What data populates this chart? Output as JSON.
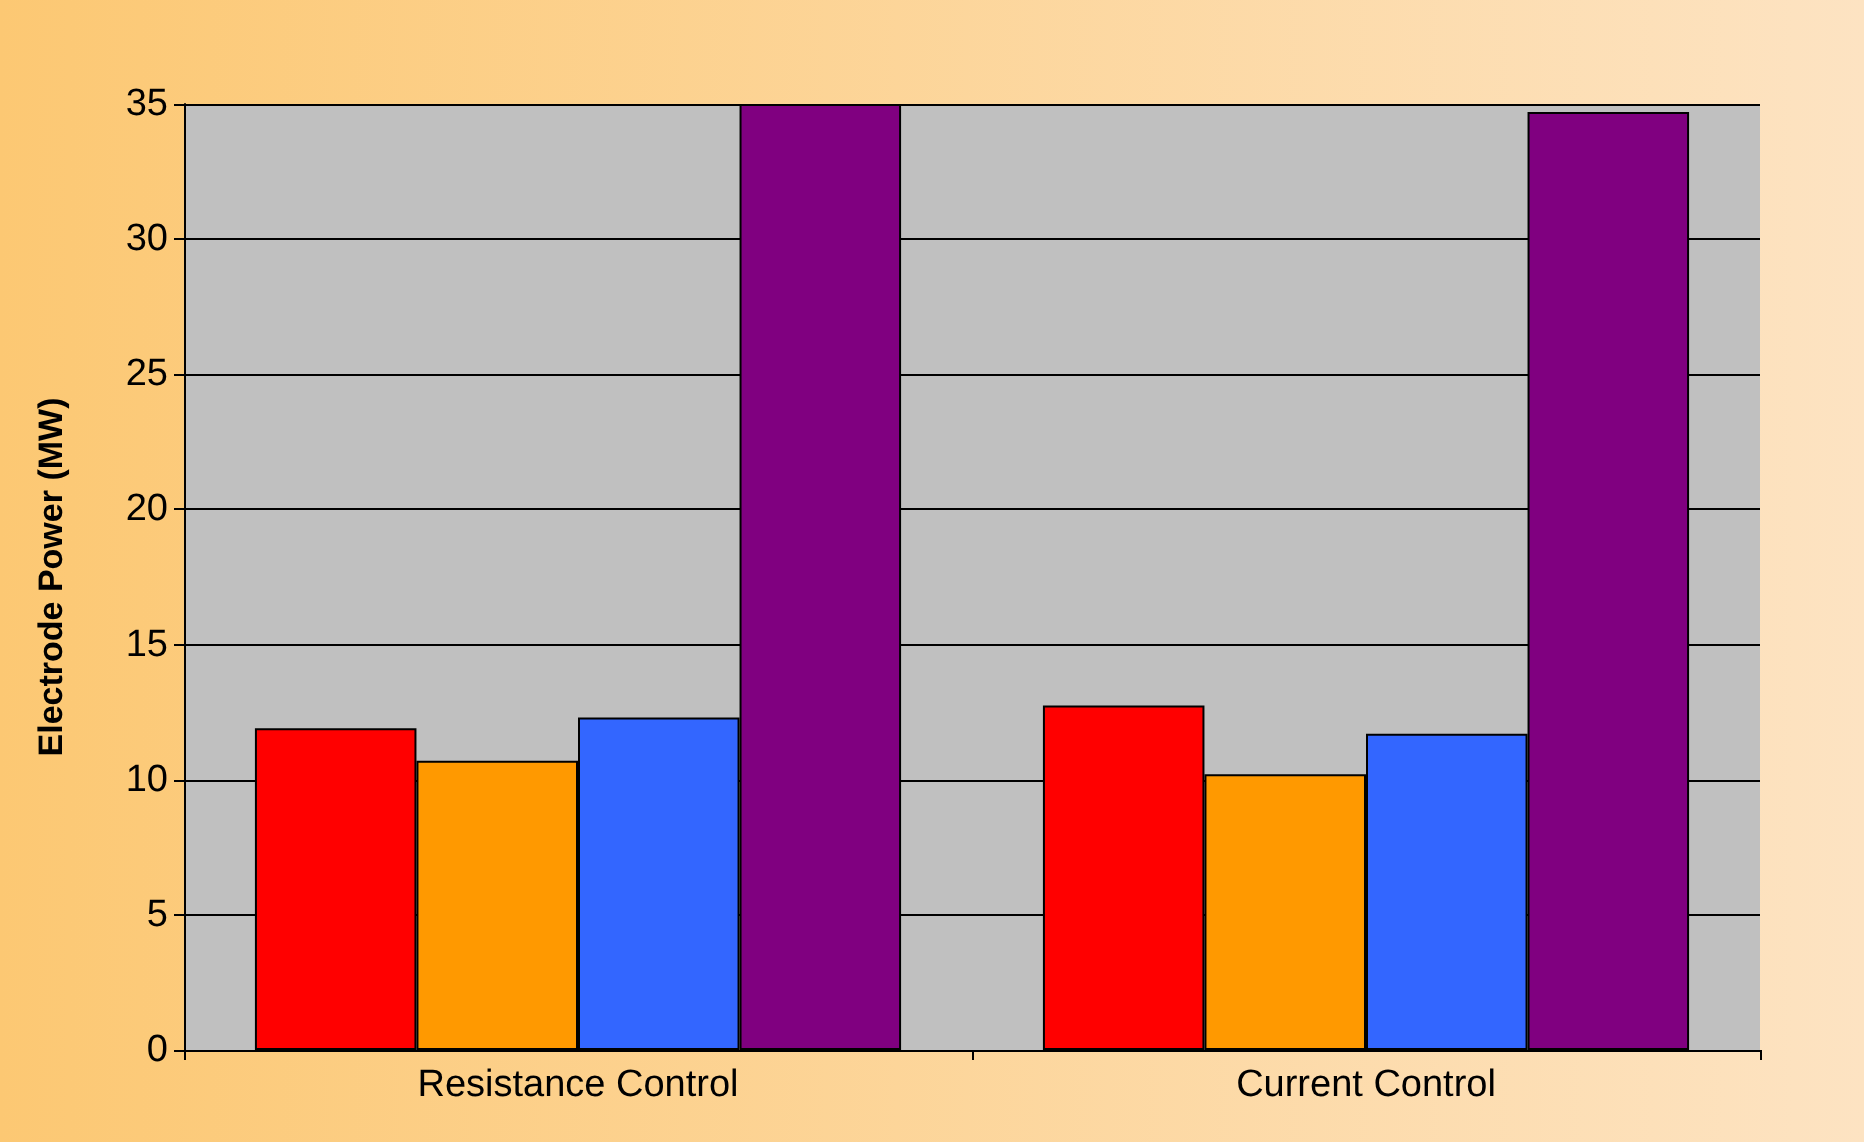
{
  "chart_data": {
    "type": "bar",
    "ylabel": "Electrode Power (MW)",
    "categories": [
      "Resistance Control",
      "Current Control"
    ],
    "series": [
      {
        "color": "#ff0000",
        "values": [
          11.9,
          12.75
        ]
      },
      {
        "color": "#ff9900",
        "values": [
          10.7,
          10.2
        ]
      },
      {
        "color": "#3366ff",
        "values": [
          12.3,
          11.7
        ]
      },
      {
        "color": "#800080",
        "values": [
          35.0,
          34.7
        ]
      }
    ],
    "ylim": [
      0,
      35
    ],
    "yticks": [
      0,
      5,
      10,
      15,
      20,
      25,
      30,
      35
    ],
    "grid": "y"
  }
}
